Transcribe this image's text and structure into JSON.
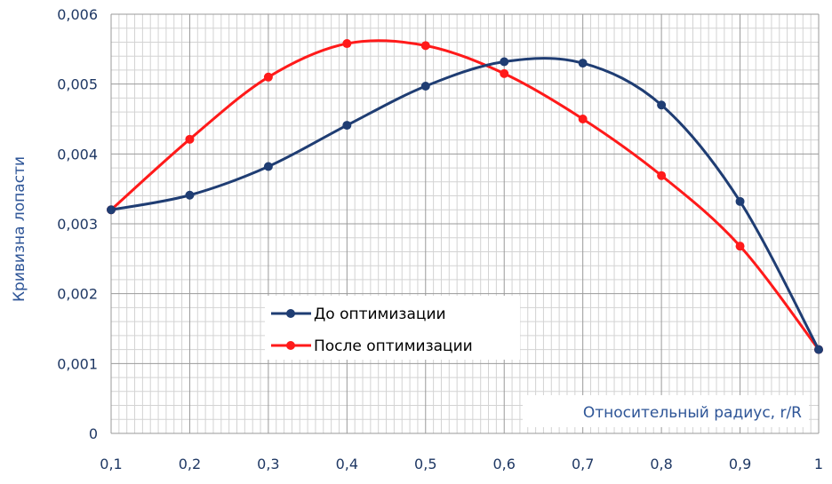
{
  "chart_data": {
    "type": "line",
    "title": "",
    "xlabel": "Относительный радиус, r/R",
    "ylabel": "Кривизна лопасти",
    "x": [
      0.1,
      0.2,
      0.3,
      0.4,
      0.5,
      0.6,
      0.7,
      0.8,
      0.9,
      1.0
    ],
    "x_tick_labels": [
      "0,1",
      "0,2",
      "0,3",
      "0,4",
      "0,5",
      "0,6",
      "0,7",
      "0,8",
      "0,9",
      "1"
    ],
    "y_ticks": [
      0,
      0.001,
      0.002,
      0.003,
      0.004,
      0.005,
      0.006
    ],
    "y_tick_labels": [
      "0",
      "0,001",
      "0,002",
      "0,003",
      "0,004",
      "0,005",
      "0,006"
    ],
    "xlim": [
      0.1,
      1.0
    ],
    "ylim": [
      0,
      0.006
    ],
    "grid": true,
    "legend_position": "center-left",
    "series": [
      {
        "name": "До оптимизации",
        "color": "#1f3d73",
        "values": [
          0.0032,
          0.00341,
          0.00382,
          0.00441,
          0.00497,
          0.00532,
          0.0053,
          0.0047,
          0.00332,
          0.0012
        ]
      },
      {
        "name": "После оптимизации",
        "color": "#ff1a1a",
        "values": [
          0.0032,
          0.00421,
          0.0051,
          0.00558,
          0.00555,
          0.00515,
          0.0045,
          0.00369,
          0.00268,
          0.0012
        ]
      }
    ]
  }
}
